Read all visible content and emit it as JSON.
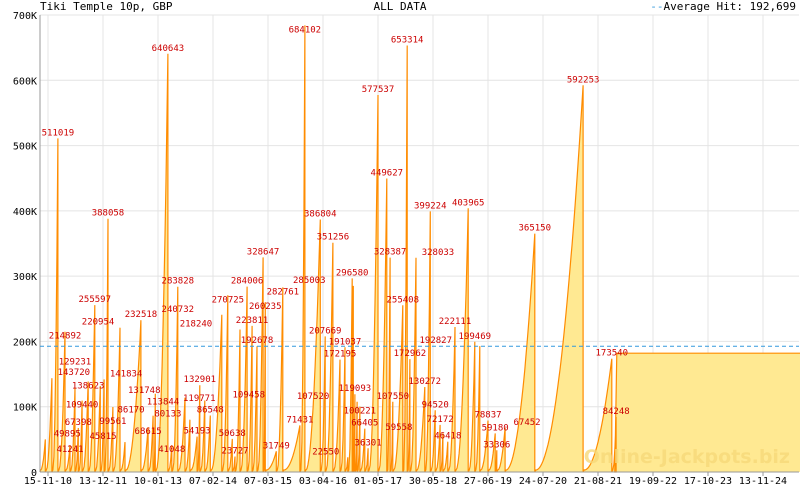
{
  "chart_data": {
    "type": "area",
    "title": "Tiki Temple 10p, GBP",
    "subtitle": "ALL DATA",
    "legend": {
      "label": "Average Hit: 192,699",
      "position": "top-right"
    },
    "average": 192699,
    "x_unit": "tick intervals (~393 days) since 15-11-10",
    "xlim": [
      -0.15,
      13.76
    ],
    "ylim": [
      0,
      700000
    ],
    "yticks": [
      0,
      100000,
      200000,
      300000,
      400000,
      500000,
      600000,
      700000
    ],
    "ytick_labels": [
      "0",
      "100K",
      "200K",
      "300K",
      "400K",
      "500K",
      "600K",
      "700K"
    ],
    "xtick_labels": [
      "15-11-10",
      "13-12-11",
      "10-01-13",
      "07-02-14",
      "07-03-15",
      "03-04-16",
      "01-05-17",
      "30-05-18",
      "27-06-19",
      "24-07-20",
      "21-08-21",
      "19-09-22",
      "17-10-23",
      "13-11-24"
    ],
    "grid": true,
    "colors": {
      "line": "#ff8c00",
      "fill": "#ffe992",
      "label": "#cc0000",
      "average": "#3399dd",
      "grid": "#e4e4e4"
    },
    "peaks": [
      [
        -0.05,
        49895
      ],
      [
        0.07,
        143720
      ],
      [
        0.18,
        511019
      ],
      [
        0.31,
        214892
      ],
      [
        0.4,
        41241
      ],
      [
        0.49,
        129231
      ],
      [
        0.55,
        67398
      ],
      [
        0.62,
        109440
      ],
      [
        0.73,
        138623
      ],
      [
        0.85,
        255597
      ],
      [
        0.95,
        131748
      ],
      [
        1.02,
        141834
      ],
      [
        1.09,
        388058
      ],
      [
        1.18,
        99561
      ],
      [
        1.31,
        220954
      ],
      [
        1.4,
        45815
      ],
      [
        1.69,
        232518
      ],
      [
        1.82,
        68615
      ],
      [
        1.91,
        86170
      ],
      [
        1.95,
        119771
      ],
      [
        2.18,
        640643
      ],
      [
        2.25,
        41048
      ],
      [
        2.36,
        283828
      ],
      [
        2.49,
        113844
      ],
      [
        2.58,
        80133
      ],
      [
        2.71,
        54193
      ],
      [
        2.76,
        132901
      ],
      [
        2.85,
        109458
      ],
      [
        2.95,
        86548
      ],
      [
        3.16,
        240732
      ],
      [
        3.27,
        270725
      ],
      [
        3.35,
        50638
      ],
      [
        3.4,
        23727
      ],
      [
        3.49,
        218240
      ],
      [
        3.62,
        284006
      ],
      [
        3.71,
        223811
      ],
      [
        3.8,
        192678
      ],
      [
        3.91,
        328647
      ],
      [
        3.95,
        260235
      ],
      [
        4.15,
        31749
      ],
      [
        4.27,
        282761
      ],
      [
        4.58,
        71431
      ],
      [
        4.67,
        684102
      ],
      [
        4.95,
        386804
      ],
      [
        5.04,
        207669
      ],
      [
        5.18,
        351256
      ],
      [
        5.31,
        172195
      ],
      [
        5.4,
        191037
      ],
      [
        5.45,
        22550
      ],
      [
        5.53,
        296580
      ],
      [
        5.55,
        285003
      ],
      [
        5.58,
        119093
      ],
      [
        5.62,
        107520
      ],
      [
        5.67,
        100221
      ],
      [
        5.76,
        66405
      ],
      [
        5.82,
        36301
      ],
      [
        6.0,
        577537
      ],
      [
        6.16,
        449627
      ],
      [
        6.22,
        328387
      ],
      [
        6.27,
        107550
      ],
      [
        6.45,
        255408
      ],
      [
        6.53,
        653314
      ],
      [
        6.58,
        172962
      ],
      [
        6.69,
        328033
      ],
      [
        6.85,
        130272
      ],
      [
        6.95,
        399224
      ],
      [
        7.04,
        94520
      ],
      [
        7.13,
        72172
      ],
      [
        7.18,
        59558
      ],
      [
        7.27,
        46418
      ],
      [
        7.4,
        222111
      ],
      [
        7.64,
        403965
      ],
      [
        7.76,
        199469
      ],
      [
        7.85,
        192827
      ],
      [
        8.0,
        78837
      ],
      [
        8.13,
        59180
      ],
      [
        8.16,
        33306
      ],
      [
        8.31,
        67452
      ],
      [
        8.85,
        365150
      ],
      [
        9.73,
        592253
      ],
      [
        10.25,
        173540
      ],
      [
        10.33,
        84248
      ]
    ],
    "flat_tail": {
      "from": 10.45,
      "to": 13.76,
      "value": 182000
    }
  },
  "watermark": "Online-Jackpots.biz"
}
